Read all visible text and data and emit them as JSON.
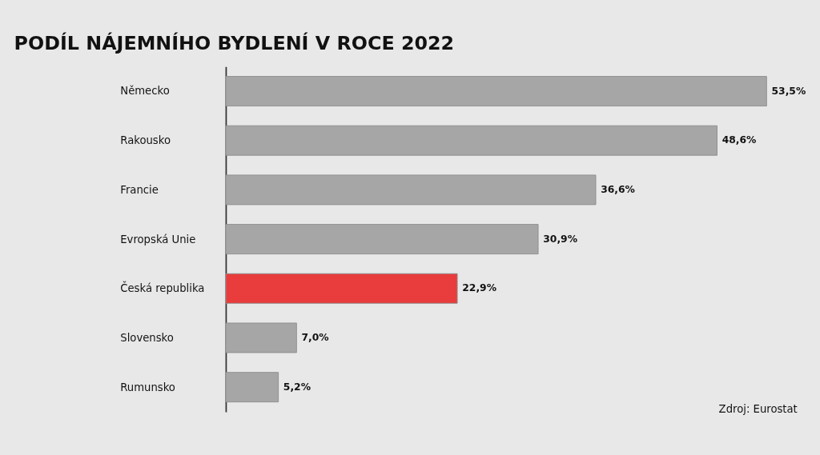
{
  "chart_data": {
    "type": "bar",
    "orientation": "horizontal",
    "title": "PODÍL NÁJEMNÍHO BYDLENÍ V ROCE 2022",
    "categories": [
      "Německo",
      "Rakousko",
      "Francie",
      "Evropská Unie",
      "Česká republika",
      "Slovensko",
      "Rumunsko"
    ],
    "values": [
      53.5,
      48.6,
      36.6,
      30.9,
      22.9,
      7.0,
      5.2
    ],
    "colors": [
      "#a6a6a6",
      "#a6a6a6",
      "#a6a6a6",
      "#a6a6a6",
      "#e93c3c",
      "#a6a6a6",
      "#a6a6a6"
    ],
    "value_labels": [
      "53,5%",
      "48,6%",
      "36,6%",
      "30,9%",
      "22,9%",
      "7,0%",
      "5,2%"
    ],
    "grid": false,
    "legend": false,
    "annotations": [
      "Zdroj: Eurostat"
    ]
  }
}
